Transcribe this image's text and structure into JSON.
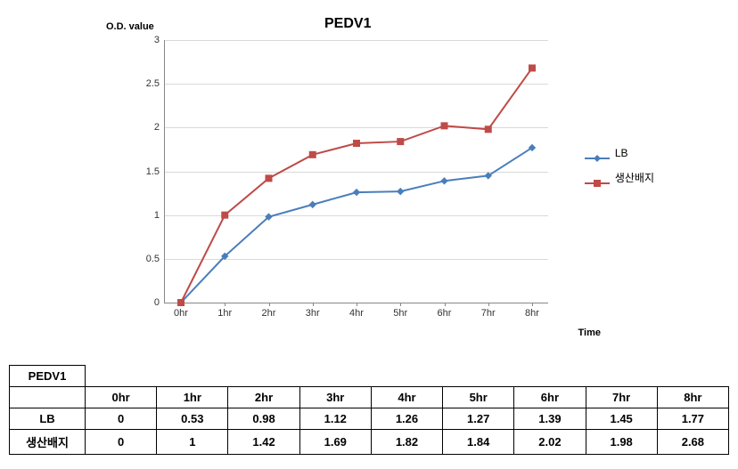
{
  "chart": {
    "title": "PEDV1",
    "y_axis_label": "O.D. value",
    "x_axis_label": "Time",
    "categories": [
      "0hr",
      "1hr",
      "2hr",
      "3hr",
      "4hr",
      "5hr",
      "6hr",
      "7hr",
      "8hr"
    ],
    "ylim": [
      0,
      3
    ],
    "ytick_step": 0.5,
    "y_ticks": [
      "0",
      "0.5",
      "1",
      "1.5",
      "2",
      "2.5",
      "3"
    ],
    "grid_color": "#d9d9d9",
    "background_color": "#ffffff",
    "series": [
      {
        "name": "LB",
        "label": "LB",
        "color": "#4a7ebb",
        "marker": "diamond",
        "marker_size": 7,
        "line_width": 2,
        "values": [
          0,
          0.53,
          0.98,
          1.12,
          1.26,
          1.27,
          1.39,
          1.45,
          1.77
        ]
      },
      {
        "name": "production-medium",
        "label": "생산배지",
        "color": "#be4b48",
        "marker": "square",
        "marker_size": 7,
        "line_width": 2,
        "values": [
          0,
          1,
          1.42,
          1.69,
          1.82,
          1.84,
          2.02,
          1.98,
          2.68
        ]
      }
    ]
  },
  "table": {
    "title": "PEDV1",
    "columns": [
      "0hr",
      "1hr",
      "2hr",
      "3hr",
      "4hr",
      "5hr",
      "6hr",
      "7hr",
      "8hr"
    ],
    "rows": [
      {
        "label": "LB",
        "cells": [
          "0",
          "0.53",
          "0.98",
          "1.12",
          "1.26",
          "1.27",
          "1.39",
          "1.45",
          "1.77"
        ]
      },
      {
        "label": "생산배지",
        "cells": [
          "0",
          "1",
          "1.42",
          "1.69",
          "1.82",
          "1.84",
          "2.02",
          "1.98",
          "2.68"
        ]
      }
    ]
  }
}
